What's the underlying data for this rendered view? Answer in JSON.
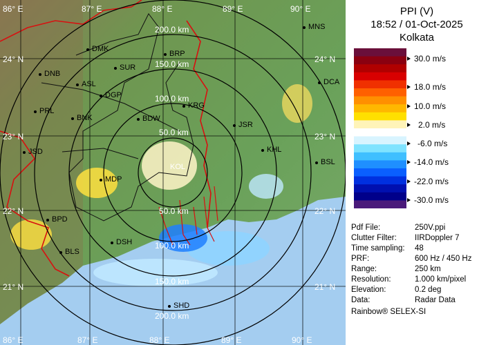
{
  "map": {
    "lon_labels": [
      "86° E",
      "87° E",
      "88° E",
      "89° E",
      "90° E"
    ],
    "lat_labels": [
      "24° N",
      "23° N",
      "22° N",
      "21° N"
    ],
    "range_labels": [
      "200.0 km",
      "150.0 km",
      "100.0 km",
      "50.0 km",
      "50.0 km",
      "100.0 km",
      "150.0 km",
      "200.0 km"
    ],
    "cities": [
      "DMK",
      "BRP",
      "MNS",
      "DNB",
      "SUR",
      "ASL",
      "DGP",
      "DCA",
      "PRL",
      "BNK",
      "KRG",
      "BDW",
      "JSR",
      "JSD",
      "KHL",
      "BSL",
      "MDP",
      "BPD",
      "DSH",
      "BLS",
      "SHD",
      "KOL"
    ],
    "colors": {
      "land": "#6f9f55",
      "water": "#9fc8ee",
      "boundary": "#d81010",
      "district": "#111111",
      "ring": "#000000"
    }
  },
  "panel": {
    "title_line1": "PPI (V)",
    "title_line2": "18:52 / 01-Oct-2025",
    "title_line3": "Kolkata",
    "colorbar_labels": [
      "30.0 m/s",
      "18.0 m/s",
      "10.0 m/s",
      "2.0 m/s",
      "-6.0 m/s",
      "-14.0 m/s",
      "-22.0 m/s",
      "-30.0 m/s"
    ],
    "colorbar_colors": [
      "#6a0f3a",
      "#8a0010",
      "#b00000",
      "#d80000",
      "#f03000",
      "#ff6000",
      "#ff9000",
      "#ffb800",
      "#ffe000",
      "#fff4b8",
      "#ffffff",
      "#d8f4ff",
      "#7fe3ff",
      "#3fbfff",
      "#1f8fff",
      "#0a5fff",
      "#0030e0",
      "#0010b0",
      "#00008a",
      "#4a1a7a"
    ],
    "info": [
      {
        "key": "Pdf File:",
        "value": "250V.ppi"
      },
      {
        "key": "Clutter Filter:",
        "value": "IIRDoppler 7"
      },
      {
        "key": "Time sampling:",
        "value": "48"
      },
      {
        "key": "PRF:",
        "value": "600 Hz / 450 Hz"
      },
      {
        "key": "Range:",
        "value": "250 km"
      },
      {
        "key": "Resolution:",
        "value": "1.000 km/pixel"
      },
      {
        "key": "Elevation:",
        "value": "0.2 deg"
      },
      {
        "key": "Data:",
        "value": "Radar Data"
      }
    ],
    "footer": "Rainbow® SELEX-SI"
  }
}
